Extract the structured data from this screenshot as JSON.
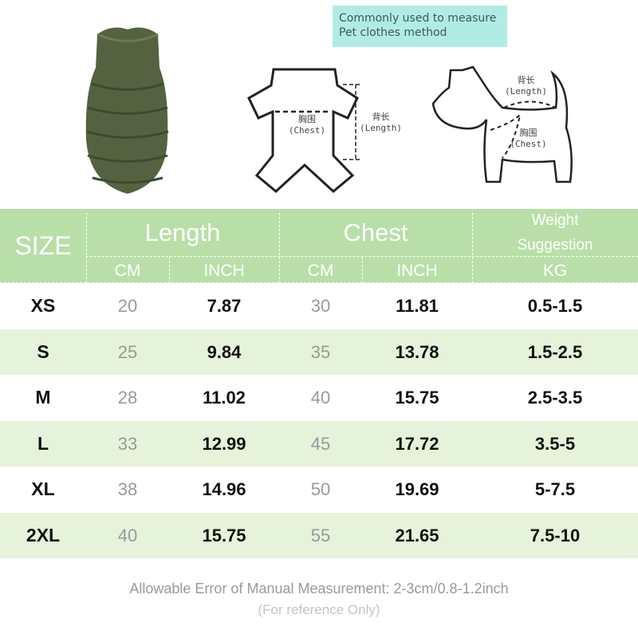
{
  "note": {
    "line1": "Commonly used to measure",
    "line2": "Pet clothes method"
  },
  "diagram": {
    "shirt": {
      "length_cn": "背长",
      "length_en": "(Length)",
      "chest_cn": "胸围",
      "chest_en": "(Chest)"
    },
    "dog": {
      "length_cn": "背长",
      "length_en": "(Length)",
      "chest_cn": "胸围",
      "chest_en": "(Chest)"
    }
  },
  "colors": {
    "header": "#b9dfa9",
    "alt_row": "#e5f3da",
    "vest": "#55623f",
    "note_bg": "#b0ece4"
  },
  "table": {
    "headers": {
      "size": "SIZE",
      "length": "Length",
      "chest": "Chest",
      "weight_line1": "Weight",
      "weight_line2": "Suggestion"
    },
    "subheaders": [
      "CM",
      "INCH",
      "CM",
      "INCH",
      "KG"
    ],
    "rows": [
      [
        "XS",
        "20",
        "7.87",
        "30",
        "11.81",
        "0.5-1.5"
      ],
      [
        "S",
        "25",
        "9.84",
        "35",
        "13.78",
        "1.5-2.5"
      ],
      [
        "M",
        "28",
        "11.02",
        "40",
        "15.75",
        "2.5-3.5"
      ],
      [
        "L",
        "33",
        "12.99",
        "45",
        "17.72",
        "3.5-5"
      ],
      [
        "XL",
        "38",
        "14.96",
        "50",
        "19.69",
        "5-7.5"
      ],
      [
        "2XL",
        "40",
        "15.75",
        "55",
        "21.65",
        "7.5-10"
      ]
    ]
  },
  "footer": {
    "line1": "Allowable Error of Manual Measurement: 2-3cm/0.8-1.2inch",
    "line2": "(For reference Only)"
  }
}
